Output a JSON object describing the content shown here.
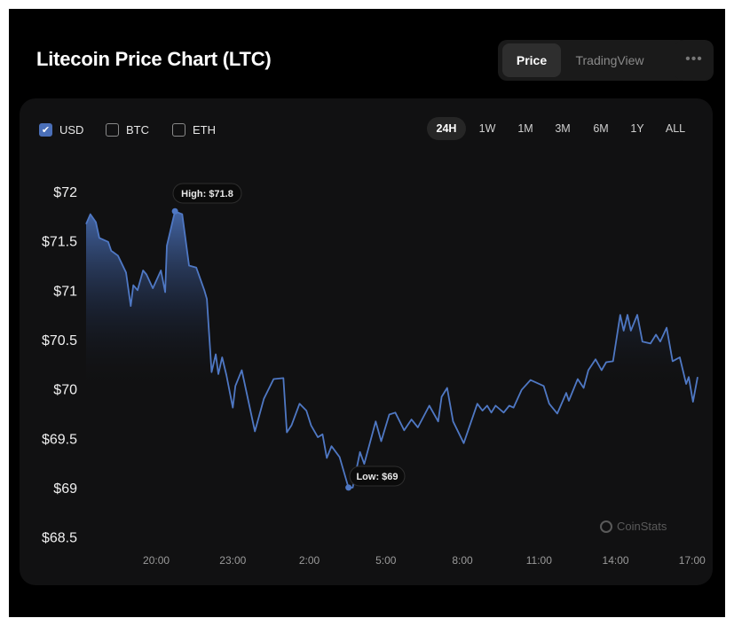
{
  "header": {
    "title": "Litecoin Price Chart (LTC)",
    "view_tabs": [
      {
        "label": "Price",
        "active": true
      },
      {
        "label": "TradingView",
        "active": false
      }
    ],
    "more_icon": "ellipsis-icon",
    "more_label": "•••"
  },
  "currencies": [
    {
      "label": "USD",
      "checked": true
    },
    {
      "label": "BTC",
      "checked": false
    },
    {
      "label": "ETH",
      "checked": false
    }
  ],
  "ranges": [
    {
      "label": "24H",
      "active": true
    },
    {
      "label": "1W",
      "active": false
    },
    {
      "label": "1M",
      "active": false
    },
    {
      "label": "3M",
      "active": false
    },
    {
      "label": "6M",
      "active": false
    },
    {
      "label": "1Y",
      "active": false
    },
    {
      "label": "ALL",
      "active": false
    }
  ],
  "watermark": "CoinStats",
  "colors": {
    "line": "#4f78c4",
    "accent": "#4a6fb8",
    "background": "#111112"
  },
  "chart_data": {
    "type": "area",
    "xlabel": "",
    "ylabel": "",
    "y_ticks": [
      "$68.5",
      "$69",
      "$69.5",
      "$70",
      "$70.5",
      "$71",
      "$71.5",
      "$72"
    ],
    "y_tick_values": [
      68.5,
      69,
      69.5,
      70,
      70.5,
      71,
      71.5,
      72
    ],
    "x_ticks": [
      "20:00",
      "23:00",
      "2:00",
      "5:00",
      "8:00",
      "11:00",
      "14:00",
      "17:00"
    ],
    "ylim": [
      68.33,
      72.32
    ],
    "grid": false,
    "annotations": {
      "high": "High: $71.8",
      "low": "Low: $69"
    },
    "high": 71.8,
    "low": 69,
    "series": [
      {
        "x": [
          "17:15",
          "17:25",
          "17:38",
          "17:46",
          "18:07",
          "18:14",
          "18:30",
          "18:49",
          "19:00",
          "19:06",
          "19:16",
          "19:29",
          "19:37",
          "19:52",
          "20:11",
          "20:21",
          "20:25",
          "20:44",
          "21:01",
          "21:17",
          "21:34",
          "21:53",
          "21:59",
          "22:10",
          "22:20",
          "22:26",
          "22:35",
          "22:45",
          "23:00",
          "23:06",
          "23:21",
          "23:52",
          "00:13",
          "00:36",
          "00:59",
          "01:07",
          "01:18",
          "01:37",
          "01:53",
          "02:04",
          "02:20",
          "02:31",
          "02:41",
          "02:52",
          "03:11",
          "03:32",
          "03:42",
          "03:59",
          "04:09",
          "04:36",
          "04:49",
          "05:08",
          "05:22",
          "05:43",
          "06:00",
          "06:15",
          "06:42",
          "07:03",
          "07:11",
          "07:24",
          "07:38",
          "08:03",
          "08:35",
          "08:47",
          "08:58",
          "09:08",
          "09:18",
          "09:37",
          "09:50",
          "10:00",
          "10:19",
          "10:40",
          "11:11",
          "11:24",
          "11:43",
          "12:04",
          "12:10",
          "12:31",
          "12:45",
          "12:56",
          "13:13",
          "13:27",
          "13:38",
          "13:54",
          "14:11",
          "14:19",
          "14:28",
          "14:36",
          "14:51",
          "15:03",
          "15:22",
          "15:35",
          "15:45",
          "16:00",
          "16:14",
          "16:31",
          "16:46",
          "16:52",
          "17:02",
          "17:13"
        ],
        "y": [
          71.67,
          71.77,
          71.69,
          71.53,
          71.49,
          71.4,
          71.35,
          71.18,
          70.84,
          71.05,
          71.0,
          71.2,
          71.16,
          71.02,
          71.2,
          70.98,
          71.45,
          71.8,
          71.77,
          71.25,
          71.23,
          71.0,
          70.91,
          70.17,
          70.35,
          70.15,
          70.32,
          70.14,
          69.81,
          70.03,
          70.19,
          69.57,
          69.9,
          70.1,
          70.11,
          69.56,
          69.63,
          69.85,
          69.78,
          69.63,
          69.51,
          69.54,
          69.3,
          69.42,
          69.31,
          69.0,
          69.0,
          69.36,
          69.24,
          69.67,
          69.47,
          69.74,
          69.76,
          69.58,
          69.69,
          69.61,
          69.83,
          69.67,
          69.92,
          70.01,
          69.67,
          69.45,
          69.85,
          69.78,
          69.83,
          69.76,
          69.83,
          69.76,
          69.83,
          69.81,
          69.99,
          70.09,
          70.03,
          69.85,
          69.75,
          69.96,
          69.88,
          70.1,
          70.01,
          70.19,
          70.3,
          70.19,
          70.27,
          70.28,
          70.75,
          70.59,
          70.75,
          70.59,
          70.75,
          70.48,
          70.46,
          70.55,
          70.48,
          70.62,
          70.28,
          70.32,
          70.05,
          70.12,
          69.87,
          70.12
        ]
      }
    ]
  }
}
